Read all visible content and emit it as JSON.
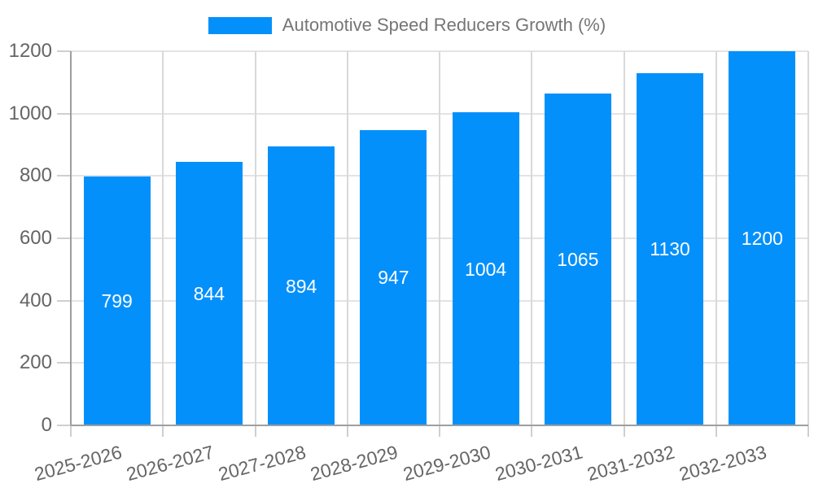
{
  "chart_data": {
    "type": "bar",
    "title": "",
    "legend": {
      "label": "Automotive Speed Reducers Growth (%)",
      "position": "top"
    },
    "categories": [
      "2025-2026",
      "2026-2027",
      "2027-2028",
      "2028-2029",
      "2029-2030",
      "2030-2031",
      "2031-2032",
      "2032-2033"
    ],
    "series": [
      {
        "name": "Automotive Speed Reducers Growth (%)",
        "values": [
          799,
          844,
          894,
          947,
          1004,
          1065,
          1130,
          1200
        ]
      }
    ],
    "bar_value_labels": [
      "799",
      "844",
      "894",
      "947",
      "1004",
      "1065",
      "1130",
      "1200"
    ],
    "ylim": [
      0,
      1200
    ],
    "yticks": [
      0,
      200,
      400,
      600,
      800,
      1000,
      1200
    ],
    "ytick_labels": [
      "0",
      "200",
      "400",
      "600",
      "800",
      "1000",
      "1200"
    ],
    "xlabel": "",
    "ylabel": "",
    "grid": true,
    "xtick_rotation_deg": -15,
    "colors": {
      "bar": "#0490fb",
      "bar_value_text": "#ffffff",
      "axis_line": "#9e9e9e",
      "h_gridline": "#e3e3e3",
      "v_gridline": "#d9d9d9",
      "tick": "#cfcfcf",
      "axis_label_text": "#656565",
      "legend_text": "#757575",
      "background": "#ffffff"
    }
  }
}
